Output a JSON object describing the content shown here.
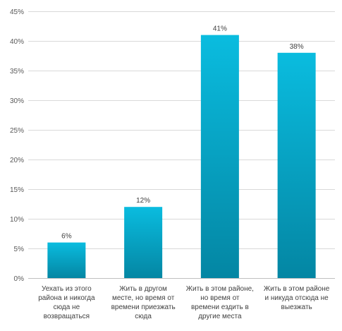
{
  "chart_data": {
    "type": "bar",
    "title": "",
    "xlabel": "",
    "ylabel": "",
    "categories": [
      [
        "Уехать из этого",
        "района и никогда",
        "сюда не",
        "возвращаться"
      ],
      [
        "Жить в другом",
        "месте, но время от",
        "времени приезжать",
        "сюда"
      ],
      [
        "Жить в этом районе,",
        "но время от",
        "времени ездить в",
        "другие места"
      ],
      [
        "Жить в этом районе",
        "и никуда отсюда не",
        "выезжать"
      ]
    ],
    "values": [
      6,
      12,
      41,
      38
    ],
    "data_labels": [
      "6%",
      "12%",
      "41%",
      "38%"
    ],
    "ylim": [
      0,
      45
    ],
    "y_ticks": [
      0,
      5,
      10,
      15,
      20,
      25,
      30,
      35,
      40,
      45
    ],
    "y_tick_labels": [
      "0%",
      "5%",
      "10%",
      "15%",
      "20%",
      "25%",
      "30%",
      "35%",
      "40%",
      "45%"
    ],
    "grid": true,
    "legend": "none",
    "colors": {
      "bar_top": "#0ABCDF",
      "bar_bottom": "#0486A3",
      "grid": "#D9D9D9",
      "axis": "#BFBFBF"
    }
  }
}
